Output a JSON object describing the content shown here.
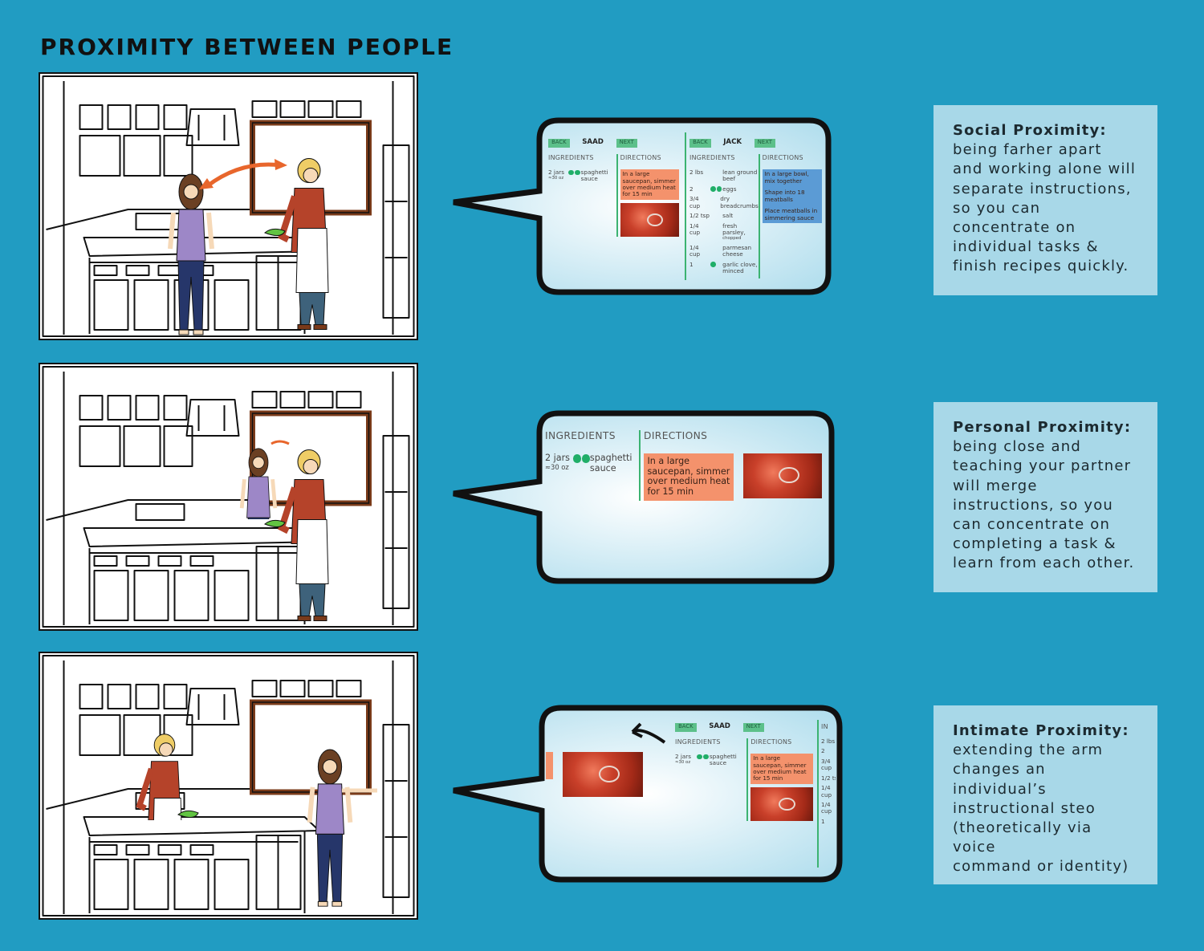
{
  "title": "PROXIMITY BETWEEN PEOPLE",
  "panels": [
    {
      "screen": {
        "panes": [
          {
            "back": "BACK",
            "name": "SAAD",
            "next": "NEXT",
            "ingredients_label": "INGREDIENTS",
            "directions_label": "DIRECTIONS",
            "ingredients": [
              {
                "qty": "2 jars",
                "qty_note": "≈30 oz",
                "dots": 2,
                "item": "spaghetti sauce"
              }
            ],
            "directions": [
              "In a large saucepan, simmer over medium heat for 15 min"
            ],
            "directions_color": "#f4926c",
            "photo": true
          },
          {
            "back": "BACK",
            "name": "JACK",
            "next": "NEXT",
            "ingredients_label": "INGREDIENTS",
            "directions_label": "DIRECTIONS",
            "ingredients": [
              {
                "qty": "2 lbs",
                "item": "lean ground beef"
              },
              {
                "qty": "2",
                "dots": 2,
                "item": "eggs"
              },
              {
                "qty": "3/4 cup",
                "item": "dry breadcrumbs"
              },
              {
                "qty": "1/2 tsp",
                "item": "salt"
              },
              {
                "qty": "1/4 cup",
                "item": "fresh parsley,",
                "item_note": "chopped"
              },
              {
                "qty": "1/4 cup",
                "item": "parmesan cheese"
              },
              {
                "qty": "1",
                "dots": 1,
                "item": "garlic clove, minced"
              }
            ],
            "directions": [
              "In a large bowl, mix together",
              "Shape into 18 meatballs",
              "Place meatballs in simmering sauce"
            ],
            "directions_color": "#5b9bd5"
          }
        ]
      },
      "caption": {
        "heading": "Social Proximity:",
        "lines": [
          "being farher apart",
          "and working alone will",
          "separate instructions,",
          "so you can",
          "concentrate on",
          "individual tasks &",
          "finish recipes quickly."
        ]
      }
    },
    {
      "screen": {
        "panes": [
          {
            "ingredients_label": "INGREDIENTS",
            "directions_label": "DIRECTIONS",
            "ingredients": [
              {
                "qty": "2 jars",
                "qty_note": "≈30 oz",
                "dots": 2,
                "item": "spaghetti sauce"
              }
            ],
            "directions": [
              "In a large saucepan, simmer over medium heat for 15 min"
            ],
            "directions_color": "#f4926c",
            "photo": true
          }
        ]
      },
      "caption": {
        "heading": "Personal Proximity:",
        "lines": [
          "being close and",
          "teaching your partner",
          "will merge",
          "instructions, so you",
          "can concentrate on",
          "completing a task &",
          "learn from each other."
        ]
      }
    },
    {
      "screen": {
        "panes": [
          {
            "directions_color": "#f4926c",
            "photo": true
          },
          {
            "back": "BACK",
            "name": "SAAD",
            "next": "NEXT",
            "ingredients_label": "INGREDIENTS",
            "directions_label": "DIRECTIONS",
            "ingredients": [
              {
                "qty": "2 jars",
                "qty_note": "≈30 oz",
                "dots": 2,
                "item": "spaghetti sauce"
              }
            ],
            "directions": [
              "In a large saucepan, simmer over medium heat for 15 min"
            ],
            "directions_color": "#f4926c",
            "photo": true
          },
          {
            "ingredients_label": "IN",
            "ingredients": [
              {
                "qty": "2 lbs"
              },
              {
                "qty": "2"
              },
              {
                "qty": "3/4 cup"
              },
              {
                "qty": "1/2 tsp"
              },
              {
                "qty": "1/4 cup"
              },
              {
                "qty": "1/4 cup"
              },
              {
                "qty": "1"
              }
            ]
          }
        ]
      },
      "caption": {
        "heading": "Intimate Proximity:",
        "lines": [
          "extending the arm",
          "changes an individual’s",
          "instructional steo",
          "(theoretically via voice",
          "command or identity)"
        ]
      }
    }
  ]
}
